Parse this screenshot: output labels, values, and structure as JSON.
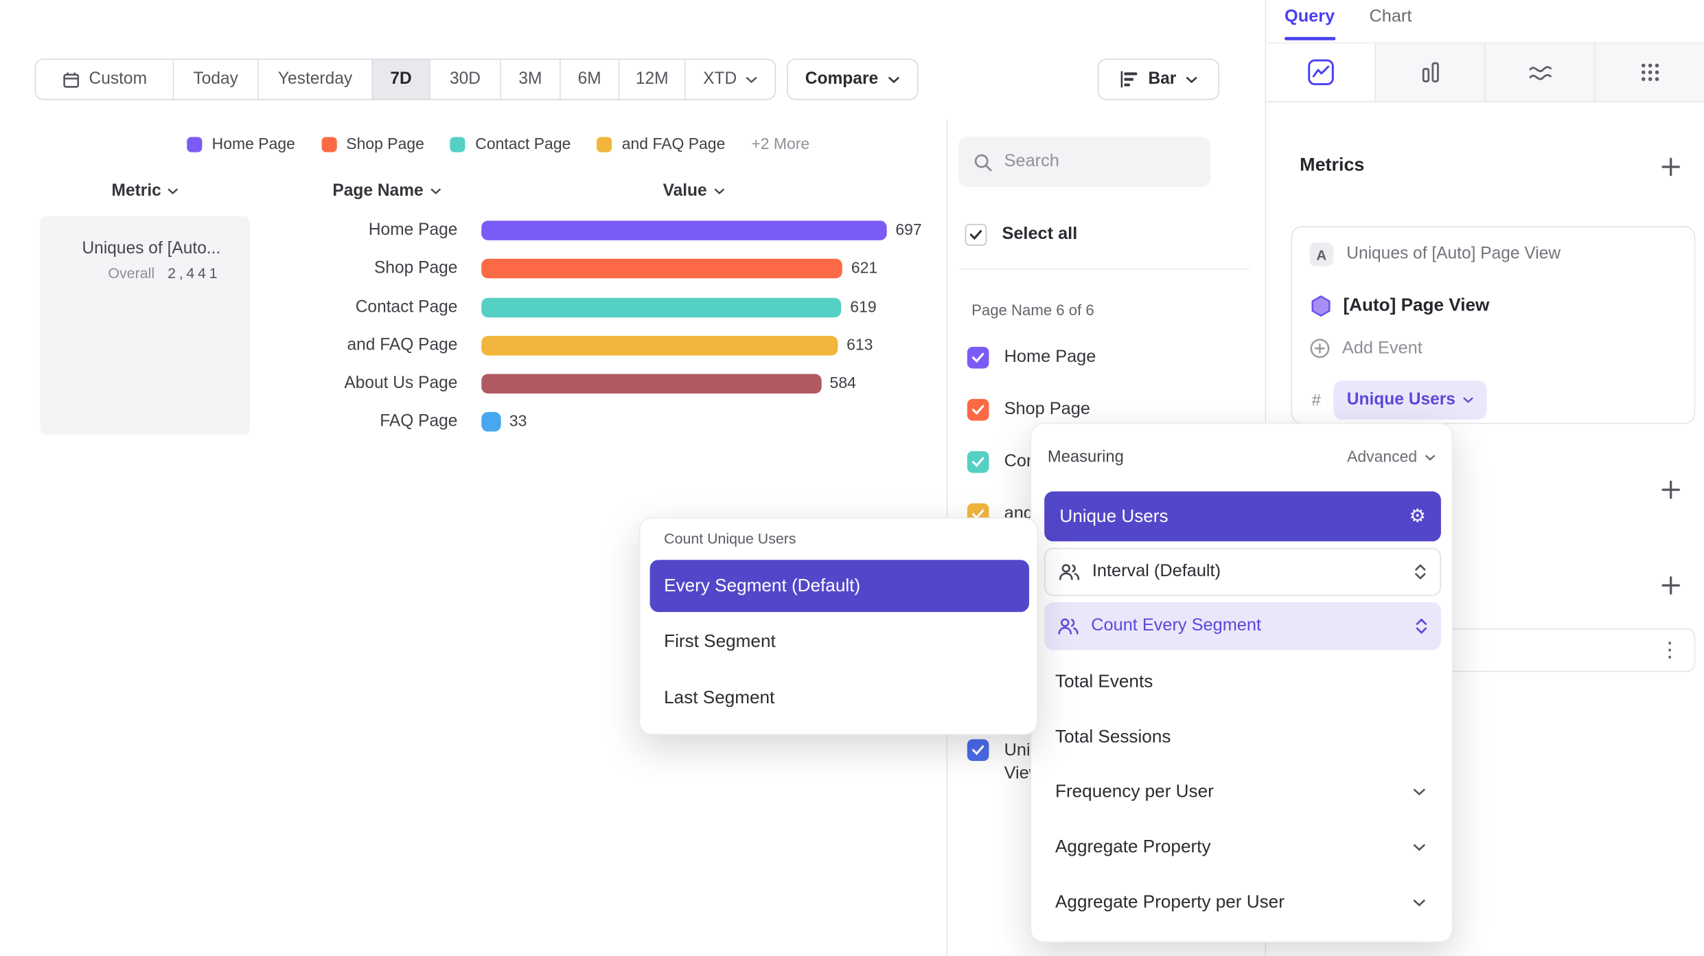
{
  "icons": {
    "gear": "⚙",
    "kebab": "⋮"
  },
  "toolbar": {
    "date_control": {
      "items": [
        {
          "label": "Custom"
        },
        {
          "label": "Today"
        },
        {
          "label": "Yesterday"
        },
        {
          "label": "7D"
        },
        {
          "label": "30D"
        },
        {
          "label": "3M"
        },
        {
          "label": "6M"
        },
        {
          "label": "12M"
        },
        {
          "label": "XTD"
        }
      ],
      "active": "7D"
    },
    "compare_label": "Compare",
    "chart_type_button": "Bar"
  },
  "legend": {
    "items": [
      {
        "label": "Home Page",
        "color": "#7b5bf5"
      },
      {
        "label": "Shop Page",
        "color": "#fb6a44"
      },
      {
        "label": "Contact Page",
        "color": "#55d0c5"
      },
      {
        "label": "and FAQ Page",
        "color": "#f2b63c"
      }
    ],
    "more_label": "+2 More"
  },
  "table_headers": {
    "metric": "Metric",
    "page_name": "Page Name",
    "value": "Value"
  },
  "metric_cell": {
    "title": "Uniques of [Auto...",
    "overall_label": "Overall",
    "overall_value": "2,441"
  },
  "chart_data": {
    "type": "bar",
    "orientation": "horizontal",
    "metric": "Uniques of [Auto] Page View",
    "overall": 2441,
    "categories": [
      "Home Page",
      "Shop Page",
      "Contact Page",
      "and FAQ Page",
      "About Us Page",
      "FAQ Page"
    ],
    "values": [
      697,
      621,
      619,
      613,
      584,
      33
    ],
    "colors": [
      "#7b5bf5",
      "#fb6a44",
      "#55d0c5",
      "#f2b63c",
      "#b25a63",
      "#47a8f0"
    ]
  },
  "filter_panel": {
    "search_placeholder": "Search",
    "select_all_label": "Select all",
    "group_label": "Page Name 6 of 6",
    "items": [
      {
        "label": "Home Page",
        "color": "#7b5bf5",
        "checked": true
      },
      {
        "label": "Shop Page",
        "color": "#fb6a44",
        "checked": true
      },
      {
        "label": "Contact Page",
        "color": "#55d0c5",
        "checked": true
      },
      {
        "label": "and FAQ Page",
        "color": "#f2b63c",
        "checked": true
      },
      {
        "label": "About Us Page",
        "color": "#b25a63",
        "checked": true
      },
      {
        "label": "FAQ Page",
        "color": "#47a8f0",
        "checked": true
      }
    ],
    "metric_item": {
      "label_line1": "Uniques of [Auto] Page",
      "label_line2": "View",
      "color": "#4a6bea",
      "checked": true
    }
  },
  "query_panel": {
    "tabs": [
      {
        "label": "Query",
        "active": true
      },
      {
        "label": "Chart",
        "active": false
      }
    ],
    "metrics_title": "Metrics",
    "metric_card": {
      "badge": "A",
      "title": "Uniques of [Auto] Page View",
      "event_label": "[Auto] Page View",
      "add_event_label": "Add Event",
      "hash": "#",
      "aggregation": "Unique Users"
    }
  },
  "segment_popup": {
    "title": "Count Unique Users",
    "selected": "Every Segment (Default)",
    "options": [
      {
        "label": "Every Segment (Default)",
        "selected": true
      },
      {
        "label": "First Segment",
        "selected": false
      },
      {
        "label": "Last Segment",
        "selected": false
      }
    ]
  },
  "measuring_popup": {
    "title": "Measuring",
    "advanced_label": "Advanced",
    "selected_option": "Unique Users",
    "interval_option": "Interval (Default)",
    "segment_option": "Count Every Segment",
    "options": [
      {
        "label": "Total Events"
      },
      {
        "label": "Total Sessions"
      }
    ],
    "expandable_options": [
      {
        "label": "Frequency per User"
      },
      {
        "label": "Aggregate Property"
      },
      {
        "label": "Aggregate Property per User"
      }
    ]
  }
}
